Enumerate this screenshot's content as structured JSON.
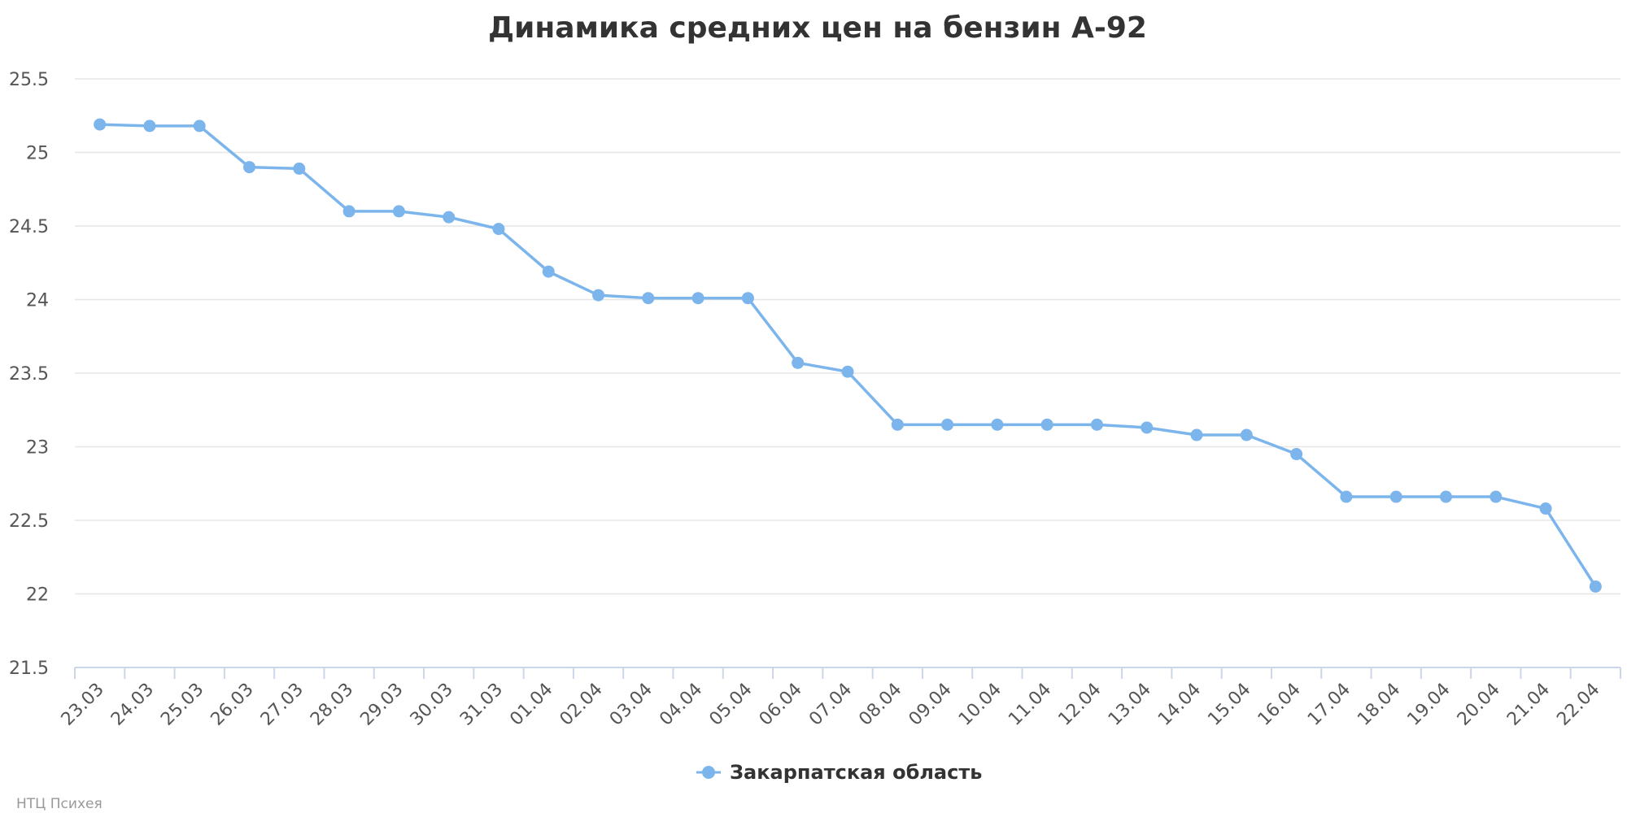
{
  "chart_data": {
    "type": "line",
    "title": "Динамика средних цен на бензин А-92",
    "xlabel": "",
    "ylabel": "",
    "categories": [
      "23.03",
      "24.03",
      "25.03",
      "26.03",
      "27.03",
      "28.03",
      "29.03",
      "30.03",
      "31.03",
      "01.04",
      "02.04",
      "03.04",
      "04.04",
      "05.04",
      "06.04",
      "07.04",
      "08.04",
      "09.04",
      "10.04",
      "11.04",
      "12.04",
      "13.04",
      "14.04",
      "15.04",
      "16.04",
      "17.04",
      "18.04",
      "19.04",
      "20.04",
      "21.04",
      "22.04"
    ],
    "series": [
      {
        "name": "Закарпатская область",
        "color": "#7cb5ec",
        "values": [
          25.19,
          25.18,
          25.18,
          24.9,
          24.89,
          24.6,
          24.6,
          24.56,
          24.48,
          24.19,
          24.03,
          24.01,
          24.01,
          24.01,
          23.57,
          23.51,
          23.15,
          23.15,
          23.15,
          23.15,
          23.15,
          23.13,
          23.08,
          23.08,
          22.95,
          22.66,
          22.66,
          22.66,
          22.66,
          22.58,
          22.05
        ]
      }
    ],
    "ylim": [
      21.5,
      25.5
    ],
    "yticks": [
      "21.5",
      "22",
      "22.5",
      "23",
      "23.5",
      "24",
      "24.5",
      "25",
      "25.5"
    ],
    "grid": true,
    "legend": "bottom-center"
  },
  "credits": "НТЦ Психея"
}
